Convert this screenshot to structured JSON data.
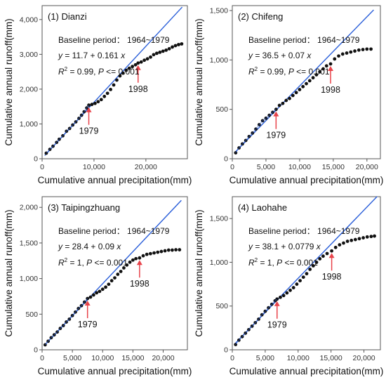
{
  "colors": {
    "fit_line": "#2b5fd9",
    "points": "#111111",
    "arrow": "#e8434a",
    "frame": "#555555"
  },
  "chart_data": [
    {
      "type": "scatter",
      "title": "(1) Dianzi",
      "xlabel": "Cumulative annual precipitation(mm)",
      "ylabel": "Cumulative annual runoff(mm)",
      "baseline_label": "Baseline period： 1964~1979",
      "equation": {
        "y": "y",
        "eq": " = 11.7 + 0.161 ",
        "x": "x"
      },
      "stats": {
        "r": "R",
        "sup": "2",
        "rest": " = 0.99,  ",
        "p": "P",
        "prest": " <= 0.001"
      },
      "xlim": [
        0,
        28000
      ],
      "ylim": [
        0,
        4400
      ],
      "xticks": [
        0,
        10000,
        20000
      ],
      "xtick_labels": [
        "0",
        "10,000",
        "20,000"
      ],
      "yticks": [
        0,
        1000,
        2000,
        3000,
        4000
      ],
      "ytick_labels": [
        "0",
        "1,000",
        "2,000",
        "3,000",
        "4,000"
      ],
      "fit": {
        "intercept": 11.7,
        "slope": 0.161,
        "x_range": [
          500,
          27000
        ]
      },
      "baseline_end_x": 9000,
      "breakpoints": [
        {
          "label": "1979",
          "x": 9000,
          "y": 1540
        },
        {
          "label": "1998",
          "x": 18500,
          "y": 2750
        }
      ],
      "series": [
        {
          "points": [
            [
              800,
              160
            ],
            [
              1500,
              270
            ],
            [
              2100,
              360
            ],
            [
              2800,
              470
            ],
            [
              3300,
              560
            ],
            [
              4000,
              660
            ],
            [
              4700,
              790
            ],
            [
              5300,
              870
            ],
            [
              5900,
              970
            ],
            [
              6500,
              1060
            ],
            [
              7100,
              1160
            ],
            [
              7600,
              1250
            ],
            [
              8100,
              1350
            ],
            [
              8600,
              1460
            ],
            [
              9000,
              1540
            ],
            [
              9600,
              1560
            ],
            [
              10200,
              1590
            ],
            [
              10800,
              1640
            ],
            [
              11400,
              1700
            ],
            [
              12000,
              1790
            ],
            [
              12600,
              1880
            ],
            [
              13200,
              1990
            ],
            [
              13800,
              2120
            ],
            [
              14400,
              2260
            ],
            [
              15000,
              2380
            ],
            [
              15600,
              2460
            ],
            [
              16200,
              2540
            ],
            [
              16800,
              2600
            ],
            [
              17400,
              2650
            ],
            [
              18000,
              2700
            ],
            [
              18500,
              2750
            ],
            [
              19100,
              2780
            ],
            [
              19700,
              2830
            ],
            [
              20300,
              2870
            ],
            [
              20900,
              2920
            ],
            [
              21500,
              2990
            ],
            [
              22100,
              3030
            ],
            [
              22700,
              3060
            ],
            [
              23300,
              3090
            ],
            [
              23900,
              3120
            ],
            [
              24500,
              3160
            ],
            [
              25100,
              3210
            ],
            [
              25700,
              3250
            ],
            [
              26300,
              3280
            ],
            [
              26900,
              3300
            ]
          ]
        }
      ]
    },
    {
      "type": "scatter",
      "title": "(2) Chifeng",
      "xlabel": "Cumulative annual precipitation(mm)",
      "ylabel": "Cumulative annual runoff(mm)",
      "baseline_label": "Baseline period： 1964~1979",
      "equation": {
        "y": "y",
        "eq": " = 36.5 + 0.07 ",
        "x": "x"
      },
      "stats": {
        "r": "R",
        "sup": "2",
        "rest": " = 0.99,  ",
        "p": "P",
        "prest": " <= 0.001"
      },
      "xlim": [
        0,
        22000
      ],
      "ylim": [
        0,
        1550
      ],
      "xticks": [
        0,
        5000,
        10000,
        15000,
        20000
      ],
      "xtick_labels": [
        "0",
        "5,000",
        "10,000",
        "15,000",
        "20,000"
      ],
      "yticks": [
        0,
        500,
        1000,
        1500
      ],
      "ytick_labels": [
        "0",
        "500",
        "1,000",
        "1,500"
      ],
      "fit": {
        "intercept": 36.5,
        "slope": 0.07,
        "x_range": [
          300,
          21000
        ]
      },
      "baseline_end_x": 6500,
      "breakpoints": [
        {
          "label": "1979",
          "x": 6500,
          "y": 500
        },
        {
          "label": "1998",
          "x": 14600,
          "y": 960
        }
      ],
      "series": [
        {
          "points": [
            [
              500,
              60
            ],
            [
              1000,
              110
            ],
            [
              1500,
              150
            ],
            [
              2000,
              185
            ],
            [
              2500,
              225
            ],
            [
              3000,
              260
            ],
            [
              3500,
              300
            ],
            [
              4000,
              345
            ],
            [
              4500,
              385
            ],
            [
              5000,
              410
            ],
            [
              5500,
              440
            ],
            [
              6000,
              470
            ],
            [
              6500,
              500
            ],
            [
              7000,
              540
            ],
            [
              7500,
              560
            ],
            [
              8000,
              590
            ],
            [
              8500,
              610
            ],
            [
              9000,
              640
            ],
            [
              9500,
              670
            ],
            [
              10000,
              700
            ],
            [
              10500,
              730
            ],
            [
              11000,
              760
            ],
            [
              11500,
              790
            ],
            [
              12000,
              820
            ],
            [
              12500,
              850
            ],
            [
              13000,
              880
            ],
            [
              13500,
              910
            ],
            [
              14000,
              940
            ],
            [
              14600,
              960
            ],
            [
              15200,
              1010
            ],
            [
              15800,
              1040
            ],
            [
              16400,
              1060
            ],
            [
              17000,
              1070
            ],
            [
              17600,
              1080
            ],
            [
              18200,
              1090
            ],
            [
              18800,
              1100
            ],
            [
              19400,
              1105
            ],
            [
              20000,
              1110
            ],
            [
              20600,
              1110
            ]
          ]
        }
      ]
    },
    {
      "type": "scatter",
      "title": "(3) Taipingzhuang",
      "xlabel": "Cumulative annual precipitation(mm)",
      "ylabel": "Cumulative annual runoff(mm)",
      "baseline_label": "Baseline period： 1964~1979",
      "equation": {
        "y": "y",
        "eq": " = 28.4 + 0.09 ",
        "x": "x"
      },
      "stats": {
        "r": "R",
        "sup": "2",
        "rest": " = 1,  ",
        "p": "P",
        "prest": " <= 0.001"
      },
      "xlim": [
        0,
        24000
      ],
      "ylim": [
        0,
        2150
      ],
      "xticks": [
        0,
        5000,
        10000,
        15000,
        20000
      ],
      "xtick_labels": [
        "0",
        "5,000",
        "10,000",
        "15,000",
        "20,000"
      ],
      "yticks": [
        0,
        500,
        1000,
        1500,
        2000
      ],
      "ytick_labels": [
        "0",
        "500",
        "1,000",
        "1,500",
        "2,000"
      ],
      "fit": {
        "intercept": 28.4,
        "slope": 0.09,
        "x_range": [
          300,
          23000
        ]
      },
      "baseline_end_x": 7500,
      "breakpoints": [
        {
          "label": "1979",
          "x": 7500,
          "y": 720
        },
        {
          "label": "1998",
          "x": 16100,
          "y": 1290
        }
      ],
      "series": [
        {
          "points": [
            [
              500,
              70
            ],
            [
              1000,
              120
            ],
            [
              1500,
              170
            ],
            [
              2000,
              210
            ],
            [
              2500,
              250
            ],
            [
              3000,
              300
            ],
            [
              3500,
              340
            ],
            [
              4000,
              390
            ],
            [
              4500,
              430
            ],
            [
              5000,
              480
            ],
            [
              5500,
              530
            ],
            [
              6000,
              580
            ],
            [
              6500,
              620
            ],
            [
              7000,
              670
            ],
            [
              7500,
              720
            ],
            [
              8000,
              740
            ],
            [
              8500,
              770
            ],
            [
              9000,
              800
            ],
            [
              9500,
              820
            ],
            [
              10000,
              850
            ],
            [
              10500,
              880
            ],
            [
              11000,
              920
            ],
            [
              11500,
              970
            ],
            [
              12000,
              1010
            ],
            [
              12500,
              1060
            ],
            [
              13000,
              1100
            ],
            [
              13500,
              1150
            ],
            [
              14000,
              1190
            ],
            [
              14500,
              1230
            ],
            [
              15000,
              1260
            ],
            [
              15500,
              1280
            ],
            [
              16100,
              1290
            ],
            [
              16700,
              1320
            ],
            [
              17300,
              1340
            ],
            [
              17900,
              1350
            ],
            [
              18500,
              1360
            ],
            [
              19100,
              1370
            ],
            [
              19700,
              1380
            ],
            [
              20300,
              1390
            ],
            [
              20900,
              1400
            ],
            [
              21500,
              1400
            ],
            [
              22100,
              1405
            ],
            [
              22700,
              1405
            ]
          ]
        }
      ]
    },
    {
      "type": "scatter",
      "title": "(4) Laohahe",
      "xlabel": "Cumulative annual precipitation(mm)",
      "ylabel": "Cumulative annual runoff(mm)",
      "baseline_label": "Baseline period： 1964~1979",
      "equation": {
        "y": "y",
        "eq": " = 38.1 + 0.0779 ",
        "x": "x"
      },
      "stats": {
        "r": "R",
        "sup": "2",
        "rest": " = 1,  ",
        "p": "P",
        "prest": " <= 0.001"
      },
      "xlim": [
        0,
        22500
      ],
      "ylim": [
        0,
        1750
      ],
      "xticks": [
        0,
        5000,
        10000,
        15000,
        20000
      ],
      "xtick_labels": [
        "0",
        "5,000",
        "10,000",
        "15,000",
        "20,000"
      ],
      "yticks": [
        0,
        500,
        1000,
        1500
      ],
      "ytick_labels": [
        "0",
        "500",
        "1,000",
        "1,500"
      ],
      "fit": {
        "intercept": 38.1,
        "slope": 0.0779,
        "x_range": [
          300,
          22000
        ]
      },
      "baseline_end_x": 6800,
      "breakpoints": [
        {
          "label": "1979",
          "x": 6800,
          "y": 580
        },
        {
          "label": "1998",
          "x": 15100,
          "y": 1130
        }
      ],
      "series": [
        {
          "points": [
            [
              500,
              60
            ],
            [
              1000,
              110
            ],
            [
              1500,
              150
            ],
            [
              2000,
              190
            ],
            [
              2500,
              230
            ],
            [
              3000,
              270
            ],
            [
              3500,
              310
            ],
            [
              4000,
              350
            ],
            [
              4500,
              400
            ],
            [
              5000,
              440
            ],
            [
              5500,
              480
            ],
            [
              6000,
              520
            ],
            [
              6500,
              560
            ],
            [
              6800,
              580
            ],
            [
              7300,
              600
            ],
            [
              7800,
              620
            ],
            [
              8300,
              650
            ],
            [
              8800,
              680
            ],
            [
              9300,
              710
            ],
            [
              9800,
              750
            ],
            [
              10300,
              790
            ],
            [
              10800,
              830
            ],
            [
              11300,
              870
            ],
            [
              11800,
              920
            ],
            [
              12300,
              960
            ],
            [
              12800,
              1000
            ],
            [
              13300,
              1040
            ],
            [
              13800,
              1070
            ],
            [
              14400,
              1100
            ],
            [
              15100,
              1130
            ],
            [
              15700,
              1170
            ],
            [
              16300,
              1200
            ],
            [
              16900,
              1220
            ],
            [
              17500,
              1240
            ],
            [
              18100,
              1250
            ],
            [
              18700,
              1260
            ],
            [
              19300,
              1270
            ],
            [
              19900,
              1280
            ],
            [
              20500,
              1290
            ],
            [
              21100,
              1295
            ],
            [
              21600,
              1300
            ]
          ]
        }
      ]
    }
  ]
}
